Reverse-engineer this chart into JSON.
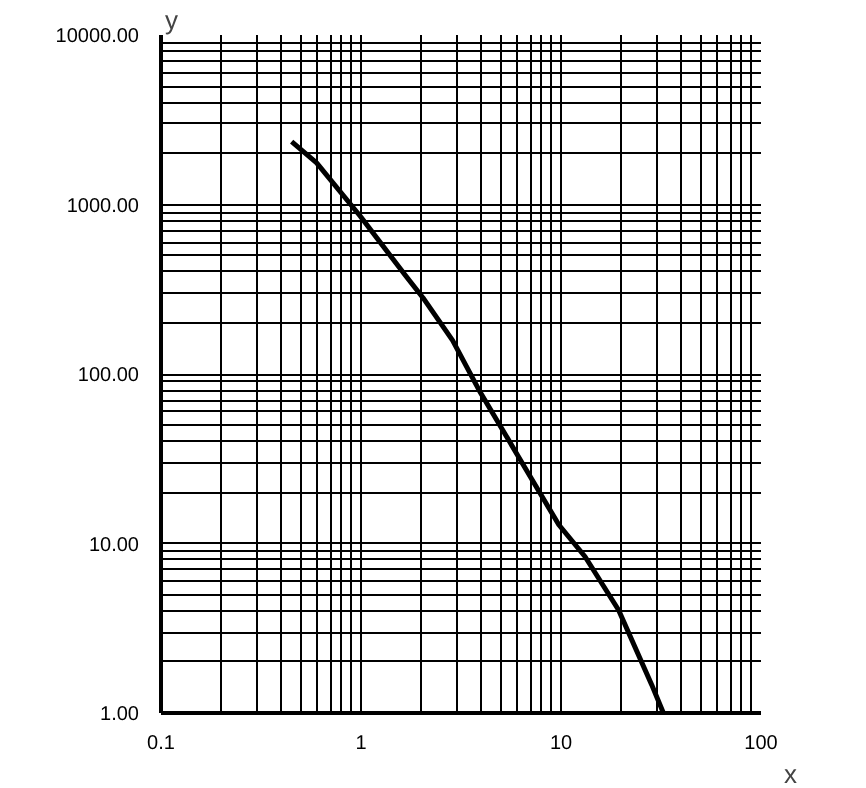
{
  "chart_data": {
    "type": "line",
    "xlabel": "x",
    "ylabel": "y",
    "log": "xy",
    "grid": true,
    "xlim": [
      0.1,
      100
    ],
    "ylim": [
      1,
      10000
    ],
    "xticks": [
      0.1,
      1,
      10,
      100
    ],
    "yticks": [
      {
        "value": 1,
        "label": "1.00"
      },
      {
        "value": 10,
        "label": "10.00"
      },
      {
        "value": 100,
        "label": "100.00"
      },
      {
        "value": 1000,
        "label": "1000.00"
      },
      {
        "value": 10000,
        "label": "10000.00"
      }
    ],
    "series": [
      {
        "color": "#000000",
        "x": [
          0.45,
          0.6,
          0.99,
          1.68,
          2.04,
          2.87,
          3.9,
          6.16,
          9.75,
          13.2,
          19.4,
          28.4,
          32.5
        ],
        "values": [
          2350,
          1760,
          855,
          377,
          282,
          158,
          80,
          32.2,
          12.9,
          8.35,
          4.05,
          1.47,
          1
        ]
      }
    ]
  }
}
